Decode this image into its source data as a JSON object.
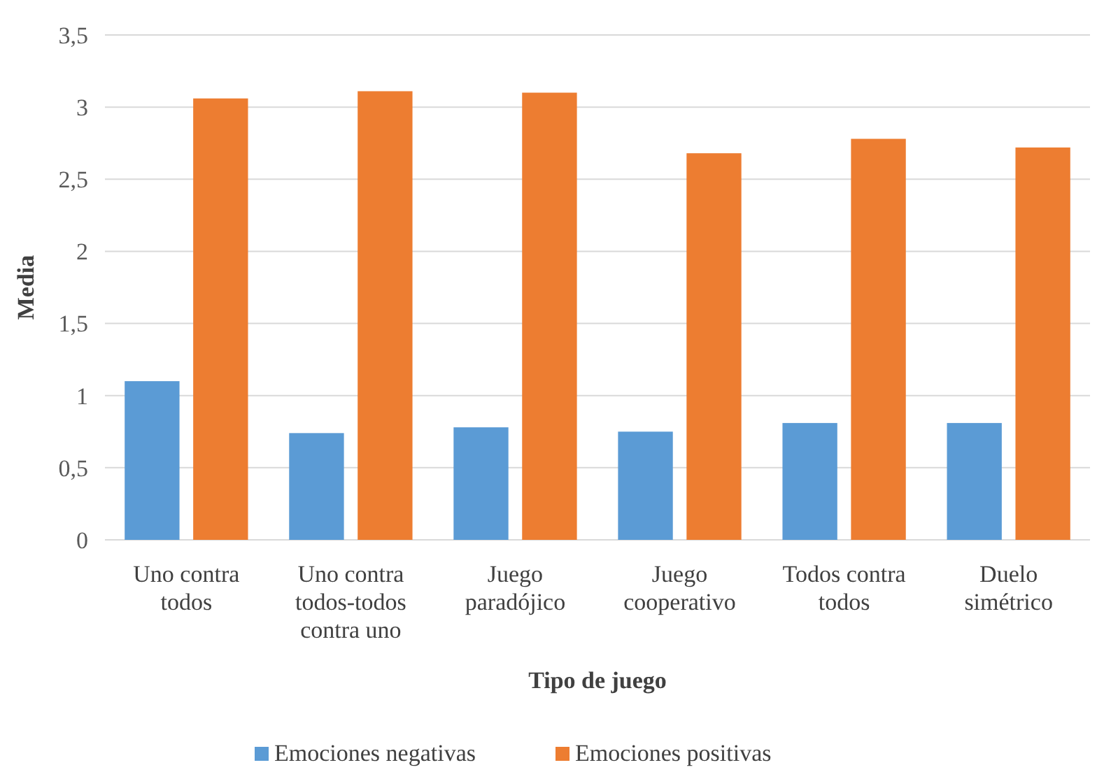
{
  "chart_data": {
    "type": "bar",
    "xlabel": "Tipo de juego",
    "ylabel": "Media",
    "categories": [
      "Uno contra todos",
      "Uno contra todos-todos contra uno",
      "Juego paradójico",
      "Juego cooperativo",
      "Todos contra todos",
      "Duelo simétrico"
    ],
    "series": [
      {
        "name": "Emociones negativas",
        "color": "#5b9bd5",
        "values": [
          1.1,
          0.74,
          0.78,
          0.75,
          0.81,
          0.81
        ]
      },
      {
        "name": "Emociones positivas",
        "color": "#ed7d31",
        "values": [
          3.06,
          3.11,
          3.1,
          2.68,
          2.78,
          2.72
        ]
      }
    ],
    "ylim": [
      0,
      3.5
    ],
    "yticks": [
      0,
      {
        "value": 0.5,
        "label": "0,5"
      },
      1,
      {
        "value": 1.5,
        "label": "1,5"
      },
      2,
      {
        "value": 2.5,
        "label": "2,5"
      },
      3,
      {
        "value": 3.5,
        "label": "3,5"
      }
    ],
    "grid": "y",
    "legend": "bottom"
  }
}
